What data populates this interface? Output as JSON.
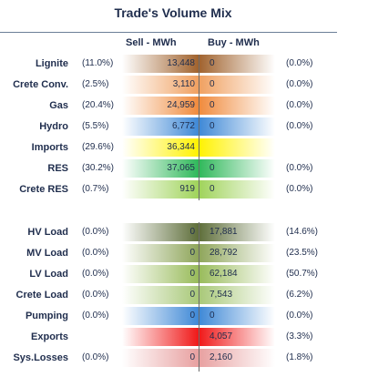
{
  "chart_data": {
    "type": "table",
    "title": "Trade's Volume Mix",
    "columns": [
      "Sell - MWh",
      "Buy - MWh"
    ],
    "rows": [
      {
        "label": "Lignite",
        "sell_pct": "(11.0%)",
        "sell": "13,448",
        "buy": "0",
        "buy_pct": "(0.0%)"
      },
      {
        "label": "Crete Conv.",
        "sell_pct": "(2.5%)",
        "sell": "3,110",
        "buy": "0",
        "buy_pct": "(0.0%)"
      },
      {
        "label": "Gas",
        "sell_pct": "(20.4%)",
        "sell": "24,959",
        "buy": "0",
        "buy_pct": "(0.0%)"
      },
      {
        "label": "Hydro",
        "sell_pct": "(5.5%)",
        "sell": "6,772",
        "buy": "0",
        "buy_pct": "(0.0%)"
      },
      {
        "label": "Imports",
        "sell_pct": "(29.6%)",
        "sell": "36,344",
        "buy": "",
        "buy_pct": ""
      },
      {
        "label": "RES",
        "sell_pct": "(30.2%)",
        "sell": "37,065",
        "buy": "0",
        "buy_pct": "(0.0%)"
      },
      {
        "label": "Crete RES",
        "sell_pct": "(0.7%)",
        "sell": "919",
        "buy": "0",
        "buy_pct": "(0.0%)"
      },
      {
        "label": "HV Load",
        "sell_pct": "(0.0%)",
        "sell": "0",
        "buy": "17,881",
        "buy_pct": "(14.6%)"
      },
      {
        "label": "MV Load",
        "sell_pct": "(0.0%)",
        "sell": "0",
        "buy": "28,792",
        "buy_pct": "(23.5%)"
      },
      {
        "label": "LV Load",
        "sell_pct": "(0.0%)",
        "sell": "0",
        "buy": "62,184",
        "buy_pct": "(50.7%)"
      },
      {
        "label": "Crete Load",
        "sell_pct": "(0.0%)",
        "sell": "0",
        "buy": "7,543",
        "buy_pct": "(6.2%)"
      },
      {
        "label": "Pumping",
        "sell_pct": "(0.0%)",
        "sell": "0",
        "buy": "0",
        "buy_pct": "(0.0%)"
      },
      {
        "label": "Exports",
        "sell_pct": "",
        "sell": "",
        "buy": "4,057",
        "buy_pct": "(3.3%)"
      },
      {
        "label": "Sys.Losses",
        "sell_pct": "(0.0%)",
        "sell": "0",
        "buy": "2,160",
        "buy_pct": "(1.8%)"
      }
    ],
    "row_colors": {
      "Lignite": "#a0622d",
      "Crete Conv.": "#f0a060",
      "Gas": "#f08a3c",
      "Hydro": "#3e88d6",
      "Imports": "#fff200",
      "RES": "#2fb85a",
      "Crete RES": "#9fd35a",
      "HV Load": "#5e6e3a",
      "MV Load": "#8ea55a",
      "LV Load": "#98bb5a",
      "Crete Load": "#a8c878",
      "Pumping": "#3e88d6",
      "Exports": "#f01818",
      "Sys.Losses": "#e8a0a0"
    }
  }
}
